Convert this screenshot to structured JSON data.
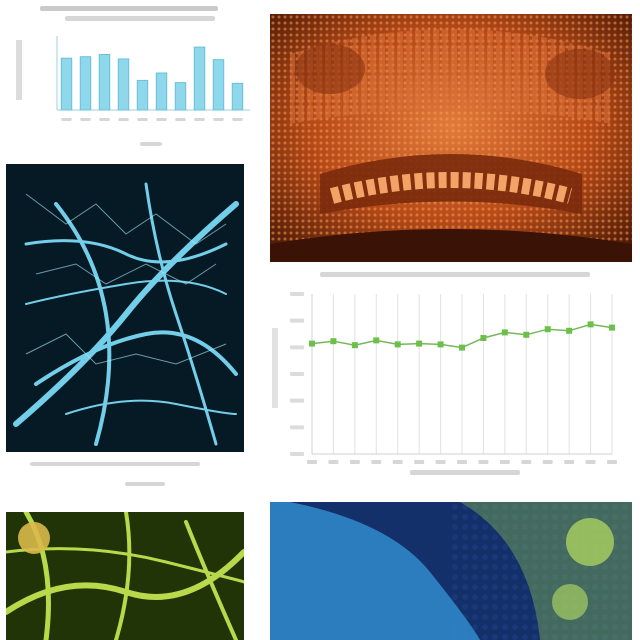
{
  "charts": [
    {
      "type": "bar",
      "title": "",
      "subtitle": "",
      "xlabel": "",
      "ylabel": "",
      "categories": [
        "",
        "",
        "",
        "",
        "",
        "",
        "",
        "",
        "",
        ""
      ],
      "values": [
        70,
        72,
        75,
        69,
        40,
        50,
        37,
        85,
        68,
        36
      ],
      "ylim": [
        0,
        100
      ],
      "bar_color": "#8fd8ec",
      "grid": false
    },
    {
      "type": "line",
      "title": "",
      "xlabel": "",
      "ylabel": "",
      "x": [
        0,
        1,
        2,
        3,
        4,
        5,
        6,
        7,
        8,
        9,
        10,
        11,
        12,
        13,
        14
      ],
      "y": [
        138,
        141,
        136,
        142,
        137,
        138,
        137,
        133,
        145,
        152,
        149,
        156,
        154,
        162,
        158
      ],
      "ylim": [
        0,
        200
      ],
      "line_color": "#74b85a",
      "point_color": "#6cc04a",
      "grid": true
    }
  ],
  "palette": {
    "copper": "#b64a18",
    "cyan_veins": "#7fe3ff",
    "green_veins": "#b7d94a",
    "blue_tissue": "#2f86c8"
  }
}
